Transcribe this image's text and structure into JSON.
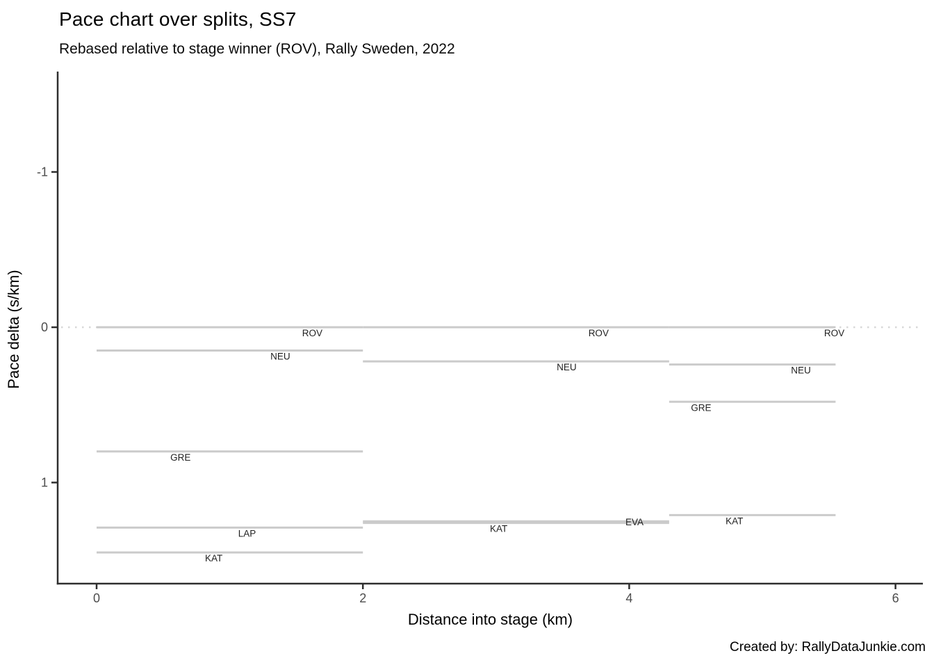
{
  "header": {
    "title": "Pace chart over splits, SS7",
    "subtitle": "Rebased relative to stage winner (ROV), Rally Sweden, 2022"
  },
  "footer": {
    "credit": "Created by: RallyDataJunkie.com"
  },
  "chart_data": {
    "type": "line",
    "title": "Pace chart over splits, SS7",
    "subtitle": "Rebased relative to stage winner (ROV), Rally Sweden, 2022",
    "xlabel": "Distance into stage (km)",
    "ylabel": "Pace delta (s/km)",
    "xlim": [
      -0.3,
      6.25
    ],
    "ylim": [
      -1.65,
      1.65
    ],
    "y_axis_inverted": true,
    "x_ticks": [
      0,
      2,
      4,
      6
    ],
    "y_ticks": [
      -1,
      0,
      1
    ],
    "grid": false,
    "legend": "none",
    "reference_line": {
      "y": 0,
      "style": "dotted",
      "meaning": "stage winner pace (ROV)"
    },
    "split_boundaries_km": [
      0,
      2.0,
      4.3,
      5.55
    ],
    "series": [
      {
        "driver": "ROV",
        "segments": [
          {
            "from_km": 0,
            "to_km": 2.0,
            "delta_s_per_km": 0.0,
            "label_km": 1.62
          },
          {
            "from_km": 2.0,
            "to_km": 4.3,
            "delta_s_per_km": 0.0,
            "label_km": 3.77
          },
          {
            "from_km": 4.3,
            "to_km": 5.55,
            "delta_s_per_km": 0.0,
            "label_km": 5.54
          }
        ]
      },
      {
        "driver": "NEU",
        "segments": [
          {
            "from_km": 0,
            "to_km": 2.0,
            "delta_s_per_km": 0.15,
            "label_km": 1.38
          },
          {
            "from_km": 2.0,
            "to_km": 4.3,
            "delta_s_per_km": 0.22,
            "label_km": 3.53
          },
          {
            "from_km": 4.3,
            "to_km": 5.55,
            "delta_s_per_km": 0.24,
            "label_km": 5.29
          }
        ]
      },
      {
        "driver": "GRE",
        "segments": [
          {
            "from_km": 0,
            "to_km": 2.0,
            "delta_s_per_km": 0.8,
            "label_km": 0.63
          },
          {
            "from_km": 4.3,
            "to_km": 5.55,
            "delta_s_per_km": 0.48,
            "label_km": 4.54
          }
        ]
      },
      {
        "driver": "LAP",
        "segments": [
          {
            "from_km": 0,
            "to_km": 2.0,
            "delta_s_per_km": 1.29,
            "label_km": 1.13
          }
        ]
      },
      {
        "driver": "EVA",
        "segments": [
          {
            "from_km": 2.0,
            "to_km": 4.3,
            "delta_s_per_km": 1.25,
            "label_km": 4.04,
            "label_on_line": true
          }
        ]
      },
      {
        "driver": "KAT",
        "segments": [
          {
            "from_km": 0,
            "to_km": 2.0,
            "delta_s_per_km": 1.45,
            "label_km": 0.88
          },
          {
            "from_km": 2.0,
            "to_km": 4.3,
            "delta_s_per_km": 1.26,
            "label_km": 3.02
          },
          {
            "from_km": 4.3,
            "to_km": 5.55,
            "delta_s_per_km": 1.21,
            "label_km": 4.79
          }
        ]
      }
    ]
  },
  "colors": {
    "background": "#ffffff",
    "segment_line": "#cbcbcb",
    "reference_dotted": "#d8d8d8",
    "axis_line": "#2e2e2e",
    "tick_label": "#4d4d4d",
    "driver_label": "#1f1f1f",
    "title_text": "#000000"
  }
}
